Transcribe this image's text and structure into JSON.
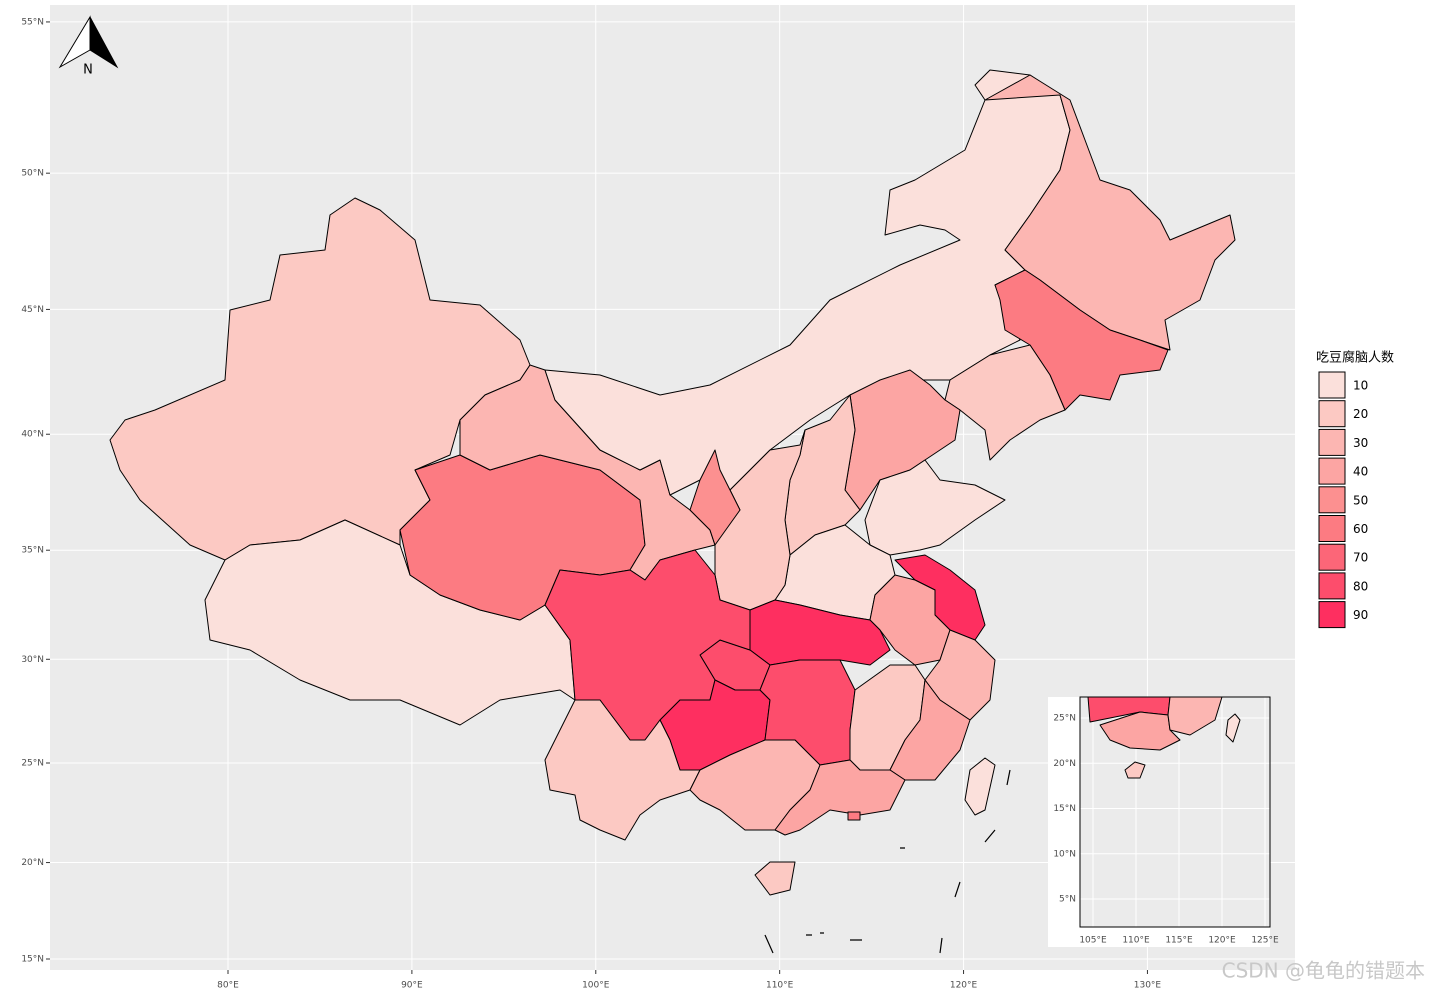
{
  "map": {
    "lat_ticks": [
      {
        "value": 55,
        "label": "55°N"
      },
      {
        "value": 50,
        "label": "50°N"
      },
      {
        "value": 45,
        "label": "45°N"
      },
      {
        "value": 40,
        "label": "40°N"
      },
      {
        "value": 35,
        "label": "35°N"
      },
      {
        "value": 30,
        "label": "30°N"
      },
      {
        "value": 25,
        "label": "25°N"
      },
      {
        "value": 20,
        "label": "20°N"
      },
      {
        "value": 15,
        "label": "15°N"
      }
    ],
    "lon_ticks": [
      {
        "value": 80,
        "label": "80°E"
      },
      {
        "value": 90,
        "label": "90°E"
      },
      {
        "value": 100,
        "label": "100°E"
      },
      {
        "value": 110,
        "label": "110°E"
      },
      {
        "value": 120,
        "label": "120°E"
      },
      {
        "value": 130,
        "label": "130°E"
      }
    ],
    "north_label": "N",
    "legend": {
      "title": "吃豆腐脑人数",
      "items": [
        {
          "value": 10,
          "color": "#fbe0db"
        },
        {
          "value": 20,
          "color": "#fcc9c3"
        },
        {
          "value": 30,
          "color": "#fcb6b2"
        },
        {
          "value": 40,
          "color": "#fca5a3"
        },
        {
          "value": 50,
          "color": "#fc9090"
        },
        {
          "value": 60,
          "color": "#fc7b82"
        },
        {
          "value": 70,
          "color": "#fc6678"
        },
        {
          "value": 80,
          "color": "#fd4d6c"
        },
        {
          "value": 90,
          "color": "#fe2f60"
        }
      ]
    },
    "inset": {
      "lat_ticks": [
        {
          "value": 25,
          "label": "25°N"
        },
        {
          "value": 20,
          "label": "20°N"
        },
        {
          "value": 15,
          "label": "15°N"
        },
        {
          "value": 10,
          "label": "10°N"
        },
        {
          "value": 5,
          "label": "5°N"
        }
      ],
      "lon_ticks": [
        {
          "value": 105,
          "label": "105°E"
        },
        {
          "value": 110,
          "label": "110°E"
        },
        {
          "value": 115,
          "label": "115°E"
        },
        {
          "value": 120,
          "label": "120°E"
        },
        {
          "value": 125,
          "label": "125°E"
        }
      ]
    },
    "watermark": "CSDN @龟龟的错题本"
  }
}
